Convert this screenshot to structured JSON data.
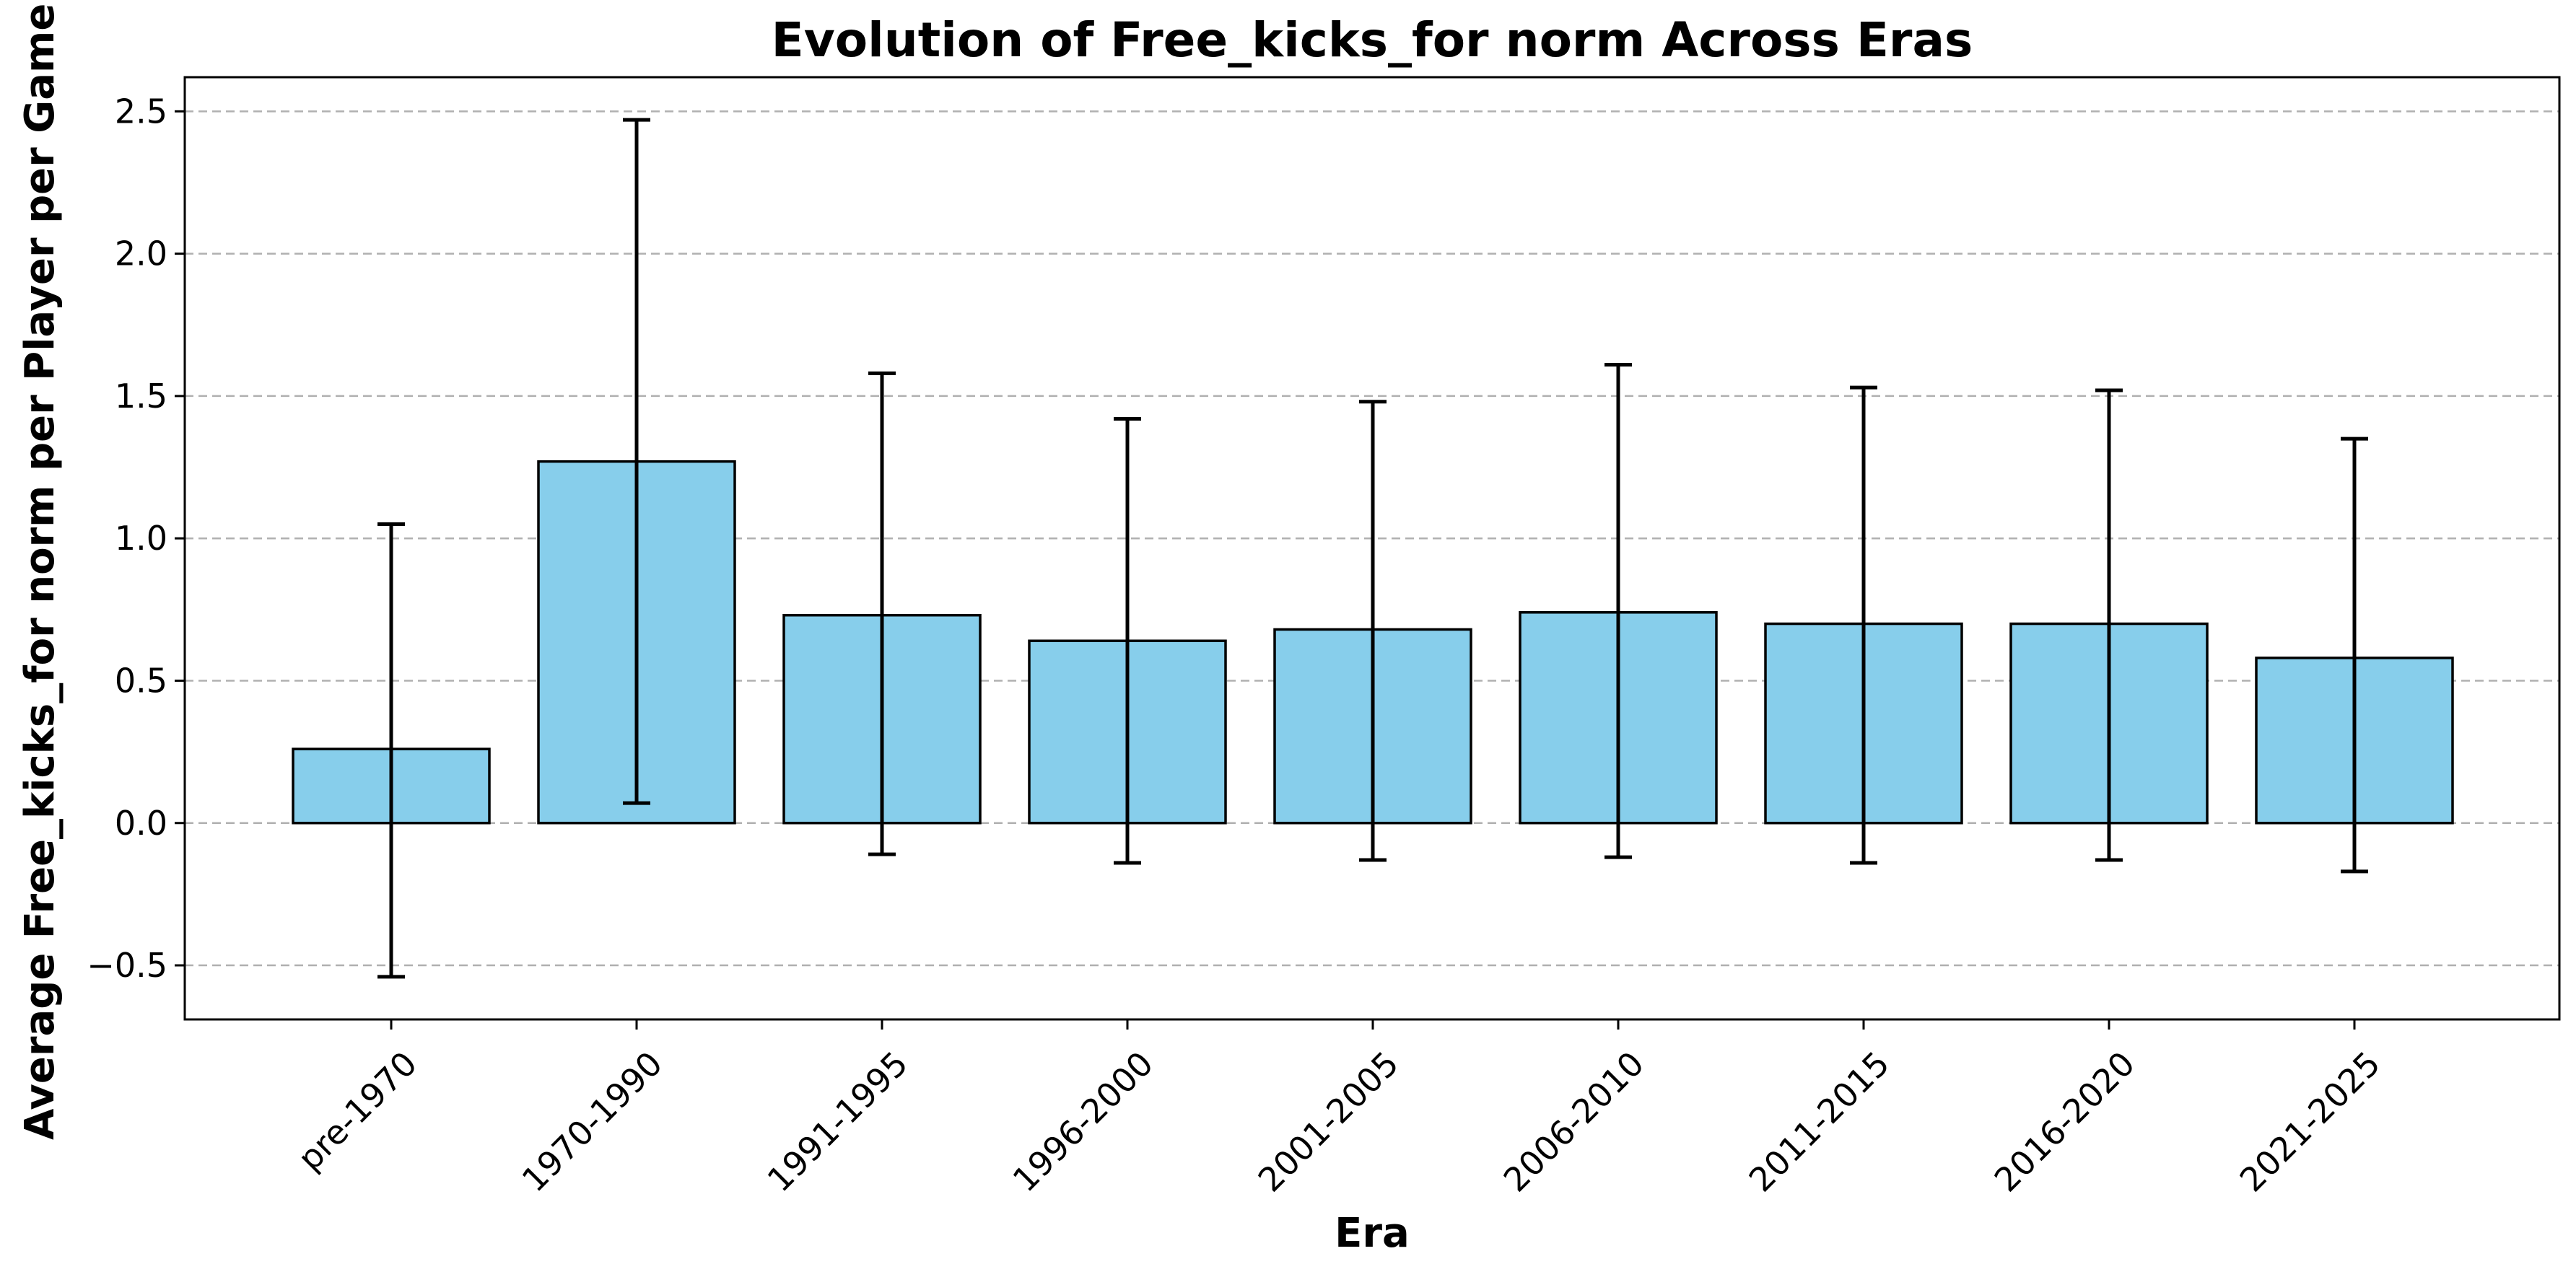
{
  "chart_data": {
    "type": "bar",
    "title": "Evolution of Free_kicks_for norm Across Eras",
    "xlabel": "Era",
    "ylabel": "Average Free_kicks_for norm per Player per Game",
    "categories": [
      "pre-1970",
      "1970-1990",
      "1991-1995",
      "1996-2000",
      "2001-2005",
      "2006-2010",
      "2011-2015",
      "2016-2020",
      "2021-2025"
    ],
    "values": [
      0.26,
      1.27,
      0.73,
      0.64,
      0.68,
      0.74,
      0.7,
      0.7,
      0.58
    ],
    "error_low": [
      -0.54,
      0.07,
      -0.11,
      -0.14,
      -0.13,
      -0.12,
      -0.14,
      -0.13,
      -0.17
    ],
    "error_high": [
      1.05,
      2.47,
      1.58,
      1.42,
      1.48,
      1.61,
      1.53,
      1.52,
      1.35
    ],
    "ylim": [
      -0.69,
      2.62
    ],
    "yticks": [
      -0.5,
      0.0,
      0.5,
      1.0,
      1.5,
      2.0,
      2.5
    ],
    "ytick_labels": [
      "−0.5",
      "0.0",
      "0.5",
      "1.0",
      "1.5",
      "2.0",
      "2.5"
    ],
    "grid": "y-dashed",
    "bar_color": "#87CEEB",
    "edge_color": "#000000",
    "grid_color": "#b0b0b0"
  }
}
